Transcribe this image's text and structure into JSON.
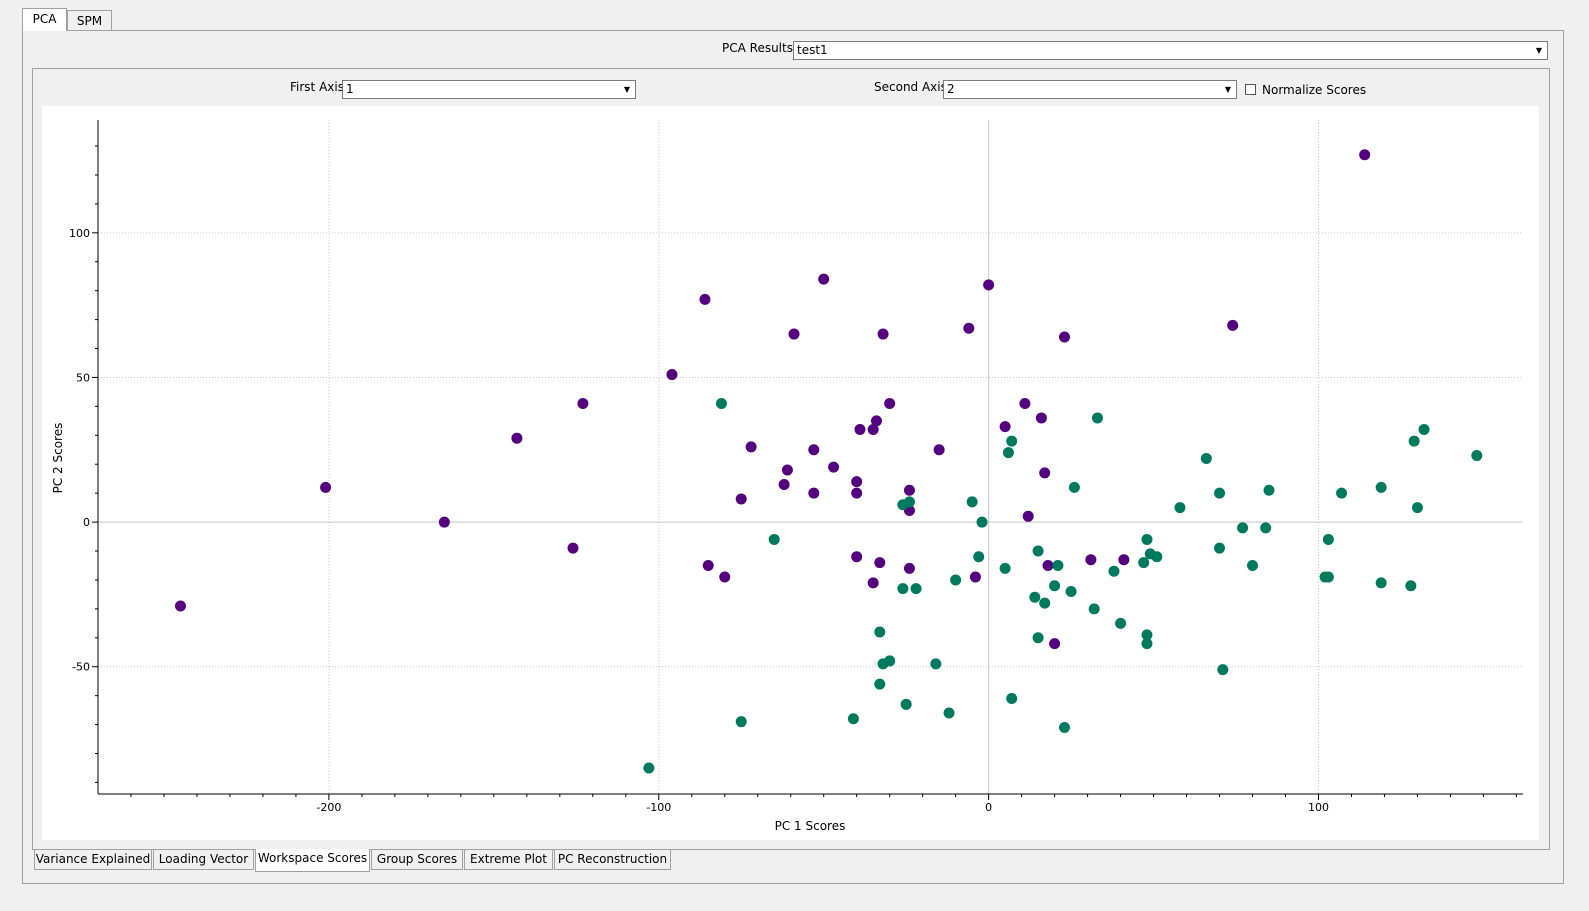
{
  "top_tabs": [
    {
      "label": "PCA",
      "active": true
    },
    {
      "label": "SPM",
      "active": false
    }
  ],
  "pca_results": {
    "label": "PCA Results:",
    "value": "test1"
  },
  "first_axis": {
    "label": "First Axis",
    "value": "1"
  },
  "second_axis": {
    "label": "Second Axis",
    "value": "2"
  },
  "normalize": {
    "label": "Normalize Scores",
    "checked": false
  },
  "bottom_tabs": [
    {
      "label": "Variance Explained",
      "active": false
    },
    {
      "label": "Loading Vector",
      "active": false
    },
    {
      "label": "Workspace Scores",
      "active": true
    },
    {
      "label": "Group Scores",
      "active": false
    },
    {
      "label": "Extreme Plot",
      "active": false
    },
    {
      "label": "PC Reconstruction",
      "active": false
    }
  ],
  "chart_data": {
    "type": "scatter",
    "xlabel": "PC 1 Scores",
    "ylabel": "PC 2 Scores",
    "xlim": [
      -270,
      162
    ],
    "ylim": [
      -94,
      139
    ],
    "xticks": [
      -200,
      -100,
      0,
      100
    ],
    "yticks": [
      100,
      50,
      0,
      -50
    ],
    "grid": true,
    "series": [
      {
        "color": "#55007f",
        "points": [
          [
            -245,
            -29
          ],
          [
            -201,
            12
          ],
          [
            -165,
            0
          ],
          [
            -143,
            29
          ],
          [
            -126,
            -9
          ],
          [
            -123,
            41
          ],
          [
            -96,
            51
          ],
          [
            -86,
            77
          ],
          [
            -85,
            -15
          ],
          [
            -80,
            -19
          ],
          [
            -75,
            8
          ],
          [
            -72,
            26
          ],
          [
            -62,
            13
          ],
          [
            -61,
            18
          ],
          [
            -59,
            65
          ],
          [
            -53,
            10
          ],
          [
            -53,
            25
          ],
          [
            -50,
            84
          ],
          [
            -47,
            19
          ],
          [
            -40,
            10
          ],
          [
            -40,
            14
          ],
          [
            -40,
            -12
          ],
          [
            -39,
            32
          ],
          [
            -35,
            32
          ],
          [
            -34,
            35
          ],
          [
            -35,
            -21
          ],
          [
            -33,
            -14
          ],
          [
            -32,
            65
          ],
          [
            -30,
            41
          ],
          [
            -24,
            11
          ],
          [
            -24,
            4
          ],
          [
            -24,
            -16
          ],
          [
            -15,
            25
          ],
          [
            -6,
            67
          ],
          [
            -4,
            -19
          ],
          [
            0,
            82
          ],
          [
            5,
            33
          ],
          [
            11,
            41
          ],
          [
            12,
            2
          ],
          [
            16,
            36
          ],
          [
            17,
            17
          ],
          [
            18,
            -15
          ],
          [
            20,
            -42
          ],
          [
            23,
            64
          ],
          [
            31,
            -13
          ],
          [
            41,
            -13
          ],
          [
            74,
            68
          ],
          [
            114,
            127
          ]
        ]
      },
      {
        "color": "#007a5e",
        "points": [
          [
            -103,
            -85
          ],
          [
            -81,
            41
          ],
          [
            -75,
            -69
          ],
          [
            -65,
            -6
          ],
          [
            -41,
            -68
          ],
          [
            -33,
            -38
          ],
          [
            -33,
            -56
          ],
          [
            -32,
            -49
          ],
          [
            -30,
            -48
          ],
          [
            -26,
            6
          ],
          [
            -26,
            -23
          ],
          [
            -25,
            -63
          ],
          [
            -24,
            7
          ],
          [
            -22,
            -23
          ],
          [
            -16,
            -49
          ],
          [
            -12,
            -66
          ],
          [
            -10,
            -20
          ],
          [
            -5,
            7
          ],
          [
            -3,
            -12
          ],
          [
            -2,
            0
          ],
          [
            5,
            -16
          ],
          [
            6,
            24
          ],
          [
            7,
            28
          ],
          [
            7,
            -61
          ],
          [
            14,
            -26
          ],
          [
            15,
            -10
          ],
          [
            15,
            -40
          ],
          [
            17,
            -28
          ],
          [
            20,
            -22
          ],
          [
            21,
            -15
          ],
          [
            23,
            -71
          ],
          [
            25,
            -24
          ],
          [
            26,
            12
          ],
          [
            32,
            -30
          ],
          [
            33,
            36
          ],
          [
            38,
            -17
          ],
          [
            40,
            -35
          ],
          [
            47,
            -14
          ],
          [
            48,
            -6
          ],
          [
            48,
            -39
          ],
          [
            48,
            -42
          ],
          [
            49,
            -11
          ],
          [
            51,
            -12
          ],
          [
            58,
            5
          ],
          [
            66,
            22
          ],
          [
            70,
            10
          ],
          [
            70,
            -9
          ],
          [
            71,
            -51
          ],
          [
            77,
            -2
          ],
          [
            80,
            -15
          ],
          [
            84,
            -2
          ],
          [
            85,
            11
          ],
          [
            102,
            -19
          ],
          [
            103,
            -19
          ],
          [
            103,
            -6
          ],
          [
            107,
            10
          ],
          [
            119,
            12
          ],
          [
            119,
            -21
          ],
          [
            128,
            -22
          ],
          [
            129,
            28
          ],
          [
            130,
            5
          ],
          [
            132,
            32
          ],
          [
            148,
            23
          ]
        ]
      }
    ]
  }
}
